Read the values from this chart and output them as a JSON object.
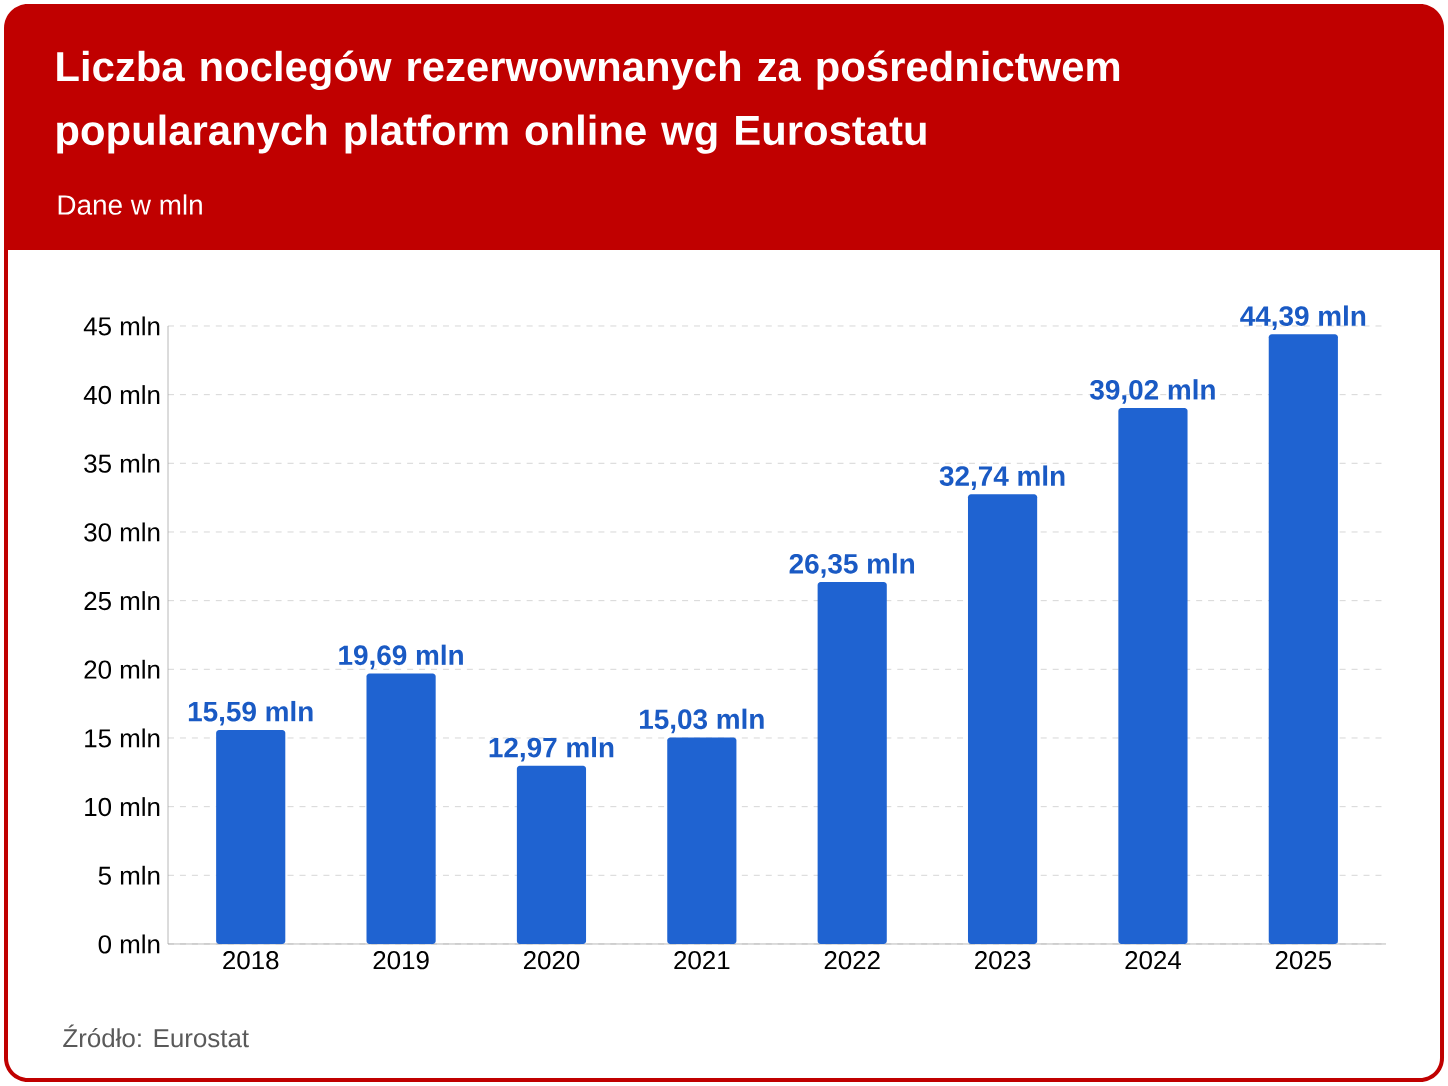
{
  "chart_data": {
    "type": "bar",
    "title": "Liczba noclegów rezerwownanych za pośrednictwem popularanych platform online wg Eurostatu",
    "subtitle": "Dane w mln",
    "categories": [
      "2018",
      "2019",
      "2020",
      "2021",
      "2022",
      "2023",
      "2024",
      "2025"
    ],
    "values": [
      15.59,
      19.69,
      12.97,
      15.03,
      26.35,
      32.74,
      39.02,
      44.39
    ],
    "value_labels": [
      "15,59 mln",
      "19,69 mln",
      "12,97 mln",
      "15,03 mln",
      "26,35 mln",
      "32,74 mln",
      "39,02 mln",
      "44,39 mln"
    ],
    "color": "#1f63d1",
    "ylim": [
      0,
      45
    ],
    "yticks": [
      {
        "value": 0,
        "label": "0 mln"
      },
      {
        "value": 5,
        "label": "5 mln"
      },
      {
        "value": 10,
        "label": "10 mln"
      },
      {
        "value": 15,
        "label": "15 mln"
      },
      {
        "value": 20,
        "label": "20 mln"
      },
      {
        "value": 25,
        "label": "25 mln"
      },
      {
        "value": 30,
        "label": "30 mln"
      },
      {
        "value": 35,
        "label": "35 mln"
      },
      {
        "value": 40,
        "label": "40 mln"
      },
      {
        "value": 45,
        "label": "45 mln"
      }
    ],
    "grid": "y",
    "annotations": [
      "Źródło: Eurostat"
    ]
  }
}
